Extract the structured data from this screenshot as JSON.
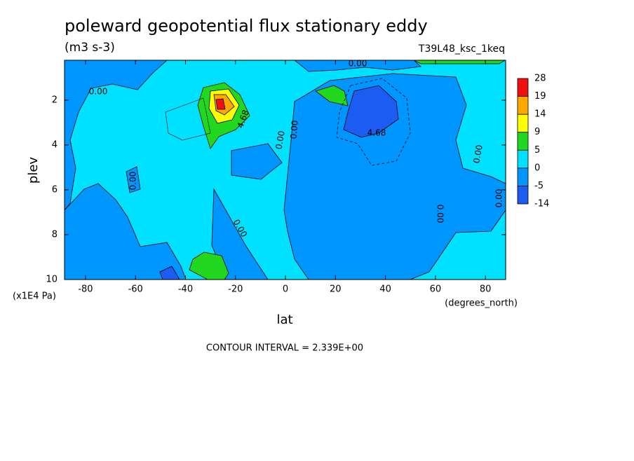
{
  "chart_data": {
    "type": "contour",
    "title": "poleward geopotential flux stationary eddy",
    "subtitle": "(m3 s-3)",
    "dataset": "T39L48_ksc_1keq",
    "x_label": "lat",
    "y_label": "plev",
    "x_units": "(degrees_north)",
    "y_units": "(x1E4 Pa)",
    "footer": "CONTOUR INTERVAL = 2.339E+00",
    "xlim": [
      -88.4,
      88.1
    ],
    "ylim": [
      10,
      0.22
    ],
    "xticks": [
      -80,
      -60,
      -40,
      -20,
      0,
      20,
      40,
      60,
      80
    ],
    "yticks": [
      2,
      4,
      6,
      8,
      10
    ],
    "colorbar": {
      "levels": [
        -14,
        -5,
        0,
        5,
        9,
        14,
        19,
        28
      ],
      "colors": [
        "#1c5cf0",
        "#0096ff",
        "#00e0ff",
        "#22d81e",
        "#ffff00",
        "#ffa800",
        "#f01010"
      ]
    },
    "contour_labels": [
      "0.00",
      "4.68",
      "0.00",
      "0.00",
      "0.00",
      "4.68",
      "0.00",
      "0.00",
      "0.00",
      "0.00",
      "0.00"
    ]
  }
}
